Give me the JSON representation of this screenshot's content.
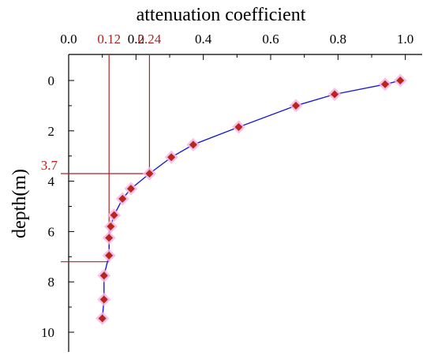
{
  "colors": {
    "series_line": "#1a1ad6",
    "marker": "#b8261c",
    "marker_halo": "#f4b6e6",
    "guide": "#b22222",
    "annotation_text": "#b22222"
  },
  "chart_data": {
    "type": "line",
    "xlabel": "attenuation coefficient",
    "ylabel": "depth(m)",
    "x_axis_position": "top",
    "y_axis_inverted": true,
    "xlim": [
      0.0,
      1.05
    ],
    "ylim": [
      0,
      11
    ],
    "x_ticks": [
      0.0,
      0.2,
      0.4,
      0.6,
      0.8,
      1.0
    ],
    "x_tick_labels": [
      "0.0",
      "0.2",
      "0.4",
      "0.6",
      "0.8",
      "1.0"
    ],
    "y_ticks": [
      0,
      2,
      4,
      6,
      8,
      10
    ],
    "y_tick_labels": [
      "0",
      "2",
      "4",
      "6",
      "8",
      "10"
    ],
    "grid": false,
    "series": [
      {
        "marker": "diamond",
        "points": [
          {
            "x": 0.985,
            "y": 0.0
          },
          {
            "x": 0.94,
            "y": 0.15
          },
          {
            "x": 0.79,
            "y": 0.55
          },
          {
            "x": 0.675,
            "y": 1.0
          },
          {
            "x": 0.505,
            "y": 1.85
          },
          {
            "x": 0.37,
            "y": 2.55
          },
          {
            "x": 0.305,
            "y": 3.05
          },
          {
            "x": 0.24,
            "y": 3.7
          },
          {
            "x": 0.185,
            "y": 4.3
          },
          {
            "x": 0.16,
            "y": 4.7
          },
          {
            "x": 0.135,
            "y": 5.35
          },
          {
            "x": 0.125,
            "y": 5.8
          },
          {
            "x": 0.12,
            "y": 6.25
          },
          {
            "x": 0.12,
            "y": 6.95
          },
          {
            "x": 0.105,
            "y": 7.75
          },
          {
            "x": 0.105,
            "y": 8.7
          },
          {
            "x": 0.1,
            "y": 9.45
          }
        ]
      }
    ],
    "annotations": {
      "x_labels": [
        {
          "text": "0.12",
          "x": 0.12
        },
        {
          "text": "0.24",
          "x": 0.24
        }
      ],
      "y_labels": [
        {
          "text": "3.7",
          "y": 3.7
        }
      ],
      "guides": [
        {
          "x": 0.12,
          "depth": 7.2
        },
        {
          "x": 0.24,
          "depth": 3.7
        }
      ]
    }
  }
}
